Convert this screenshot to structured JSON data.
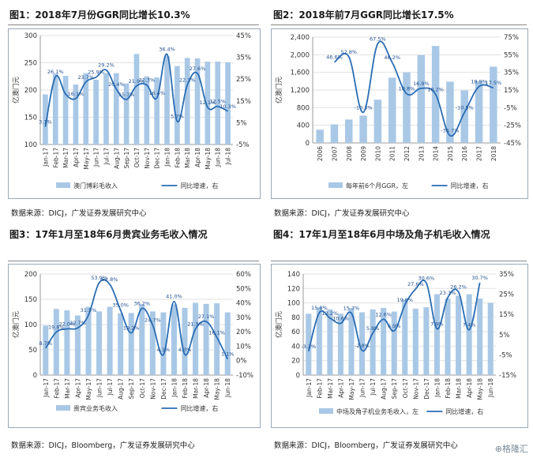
{
  "watermark": "⊕格隆汇",
  "colors": {
    "bar": "#a9c8e6",
    "line": "#2a6db4",
    "text": "#333333"
  },
  "charts": [
    {
      "title": "图1：2018年7月份GGR同比增长10.3%",
      "source": "数据来源：DICJ，广发证券发展研究中心",
      "chart_data": {
        "type": "bar+line",
        "categories": [
          "Jan-17",
          "Feb-17",
          "Mar-17",
          "Apr-17",
          "May-17",
          "Jun-17",
          "Jul-17",
          "Aug-17",
          "Sep-17",
          "Oct-17",
          "Nov-17",
          "Dec-17",
          "Jan-18",
          "Feb-18",
          "Mar-18",
          "Apr-18",
          "May-18",
          "Jun-18",
          "Jul-18"
        ],
        "tick_labels": [
          "Jan-17",
          "Feb-17",
          "Mar-17",
          "Apr-17",
          "May-17",
          "Jun-17",
          "Jul-17",
          "Aug-17",
          "Sep-17",
          "Oct-17",
          "Nov-17",
          "Dec-17",
          "Jan-18",
          "Feb-18",
          "Mar-18",
          "Apr-18",
          "May-18",
          "Jun-18",
          "Jul-18"
        ],
        "bar_series": {
          "name": "澳门博彩毛收入",
          "values": [
            192,
            230,
            226,
            210,
            231,
            219,
            231,
            231,
            212,
            266,
            225,
            223,
            262,
            244,
            259,
            258,
            252,
            252,
            251
          ]
        },
        "line_series": {
          "name": "同比增速，右",
          "values": [
            3.1,
            26.1,
            18.1,
            16.1,
            23.7,
            25.9,
            29.2,
            20.4,
            15.7,
            21.9,
            22.3,
            16.4,
            36.4,
            5.7,
            22.3,
            27.6,
            12.1,
            12.5,
            10.3
          ]
        },
        "bar_labels": [
          "",
          "",
          "",
          "",
          "",
          "",
          "",
          "",
          "",
          "",
          "",
          "",
          "",
          "",
          "",
          "",
          "",
          "",
          ""
        ],
        "line_labels": [
          "3.1%",
          "26.1%",
          "",
          "16.1%",
          "23.7%",
          "25.9%",
          "29.2%",
          "20.4%",
          "15.7%",
          "21.9%",
          "22.3%",
          "16.4%",
          "36.4%",
          "5.7%",
          "22.3%",
          "27.6%",
          "12.1%",
          "12.5%",
          "10.3%"
        ],
        "ylabel": "亿澳门元",
        "ylim": [
          100,
          300
        ],
        "yticks": [
          100,
          150,
          200,
          250,
          300
        ],
        "y2lim": [
          -5,
          45
        ],
        "y2ticks": [
          -5,
          5,
          15,
          25,
          35,
          45
        ],
        "legend": [
          "澳门博彩毛收入",
          "同比增速，右"
        ]
      }
    },
    {
      "title": "图2：2018年前7月GGR同比增长17.5%",
      "source": "数据来源：DICJ，广发证券发展研究中心",
      "chart_data": {
        "type": "bar+line",
        "categories": [
          "2006",
          "2007",
          "2008",
          "2009",
          "2010",
          "2011",
          "2012",
          "2013",
          "2014",
          "2015",
          "2016",
          "2017",
          "2018"
        ],
        "tick_labels": [
          "2006",
          "2007",
          "2008",
          "2009",
          "2010",
          "2011",
          "2012",
          "2013",
          "2014",
          "2015",
          "2016",
          "2017",
          "2018"
        ],
        "bar_series": {
          "name": "每年前6个月GGR，左",
          "values": [
            300,
            420,
            530,
            620,
            980,
            1480,
            1600,
            1990,
            2200,
            1390,
            1190,
            1400,
            1730
          ]
        },
        "line_series": {
          "name": "同比增速，右",
          "values": [
            null,
            46.6,
            52.8,
            -10.3,
            67.5,
            46.2,
            10.8,
            16.9,
            10.2,
            -36.7,
            -10.5,
            18.9,
            17.5
          ]
        },
        "line_labels": [
          "",
          "46.6%",
          "52.8%",
          "-10.3%",
          "67.5%",
          "46.2%",
          "10.8%",
          "16.9%",
          "10.2%",
          "-36.7%",
          "-10.5%",
          "18.9%",
          "17.5%"
        ],
        "ylabel": "亿澳门元",
        "ylim": [
          0,
          2400
        ],
        "yticks": [
          0,
          400,
          800,
          1200,
          1600,
          2000,
          2400
        ],
        "y2lim": [
          -45,
          75
        ],
        "y2ticks": [
          -45,
          -25,
          -5,
          15,
          35,
          55,
          75
        ],
        "legend": [
          "每年前6个月GGR，左",
          "同比增速，右"
        ]
      }
    },
    {
      "title": "图3：17年1月至18年6月贵宾业务毛收入情况",
      "source": "数据来源：DICJ，Bloomberg，广发证券发展研究中心",
      "chart_data": {
        "type": "bar+line",
        "categories": [
          "Jan-17",
          "Feb-17",
          "Mar-17",
          "Apr-17",
          "May-17",
          "Jun-17",
          "Jul-17",
          "Aug-17",
          "Sep-17",
          "Oct-17",
          "Nov-17",
          "Dec-17",
          "Jan-18",
          "Feb-18",
          "Mar-18",
          "Apr-18",
          "May-18",
          "Jun-18"
        ],
        "tick_labels": [
          "Jan-17",
          "Feb-17",
          "Mar-17",
          "Apr-17",
          "May-17",
          "Jun-17",
          "Jul-17",
          "Aug-17",
          "Sep-17",
          "Oct-17",
          "Nov-17",
          "Dec-17",
          "Jan-18",
          "Feb-18",
          "Mar-18",
          "Apr-18",
          "May-18",
          "Jun-18"
        ],
        "bar_series": {
          "name": "贵宾业务毛收入",
          "values": [
            98,
            131,
            128,
            118,
            135,
            126,
            135,
            122,
            123,
            140,
            126,
            124,
            140,
            133,
            143,
            141,
            142,
            124
          ]
        },
        "line_series": {
          "name": "同比增速，右",
          "values": [
            8.7,
            19.8,
            22.0,
            22.7,
            31.5,
            53.9,
            52.8,
            35.0,
            19.2,
            36.2,
            24.7,
            4.1,
            41.0,
            4.3,
            21.9,
            27.1,
            16.1,
            1.1
          ]
        },
        "line_labels": [
          "8.7%",
          "19.8%",
          "22.0%",
          "22.7%",
          "31.5%",
          "53.9%",
          "52.8%",
          "35.0%",
          "19.2%",
          "36.2%",
          "24.7%",
          "4.1%",
          "41.0%",
          "4.3%",
          "21.9%",
          "27.1%",
          "16.1%",
          "1.1%"
        ],
        "ylabel": "亿澳门元",
        "ylim": [
          0,
          200
        ],
        "yticks": [
          0,
          50,
          100,
          150,
          200
        ],
        "y2lim": [
          -10,
          60
        ],
        "y2ticks": [
          -10,
          0,
          10,
          20,
          30,
          40,
          50,
          60
        ],
        "legend": [
          "贵宾业务毛收入",
          "同比增速，右"
        ]
      }
    },
    {
      "title": "图4：17年1月至18年6月中场及角子机毛收入情况",
      "source": "数据来源：DICJ，Bloomberg，广发证券发展研究中心",
      "chart_data": {
        "type": "bar+line",
        "categories": [
          "Jan-17",
          "Feb-17",
          "Mar-17",
          "Apr-17",
          "May-17",
          "Jun-17",
          "Jul-17",
          "Aug-17",
          "Sep-17",
          "Oct-17",
          "Nov-17",
          "Dec-17",
          "Jan-18",
          "Feb-18",
          "Mar-18",
          "Apr-18",
          "May-18",
          "Jun-18"
        ],
        "tick_labels": [
          "Jan-17",
          "Feb-17",
          "Mar-17",
          "Apr-17",
          "May-17",
          "Jun-17",
          "Jul-17",
          "Aug-17",
          "Sep-17",
          "Oct-17",
          "Nov-17",
          "Dec-17",
          "Jan-18",
          "Feb-18",
          "Mar-18",
          "Apr-18",
          "May-18",
          "Jun-18"
        ],
        "bar_series": {
          "name": "中场及角子机业务毛收入，左",
          "values": [
            85,
            94,
            91,
            85,
            93,
            87,
            91,
            93,
            88,
            105,
            92,
            94,
            112,
            106,
            110,
            112,
            106,
            100
          ]
        },
        "line_series": {
          "name": "同比增速，右",
          "values": [
            -3.2,
            15.8,
            13.2,
            10.6,
            15.7,
            -2.8,
            5.8,
            12.6,
            6.9,
            19.8,
            27.6,
            30.6,
            7.9,
            23.3,
            26.2,
            7.4,
            30.7,
            null
          ]
        },
        "line_labels": [
          "-3.2%",
          "15.8%",
          "13.2%",
          "10.6%",
          "15.7%",
          "-2.8%",
          "5.8%",
          "12.6%",
          "6.9%",
          "19.8%",
          "27.6%",
          "30.6%",
          "7.9%",
          "23.3%",
          "26.2%",
          "7.4%",
          "30.7%",
          ""
        ],
        "ylabel": "亿澳门元",
        "ylim": [
          0,
          140
        ],
        "yticks": [
          0,
          20,
          40,
          60,
          80,
          100,
          120,
          140
        ],
        "y2lim": [
          -15,
          35
        ],
        "y2ticks": [
          -15,
          -5,
          5,
          15,
          25,
          35
        ],
        "legend": [
          "中场及角子机业务毛收入，左",
          "同比增速，右"
        ]
      }
    }
  ]
}
